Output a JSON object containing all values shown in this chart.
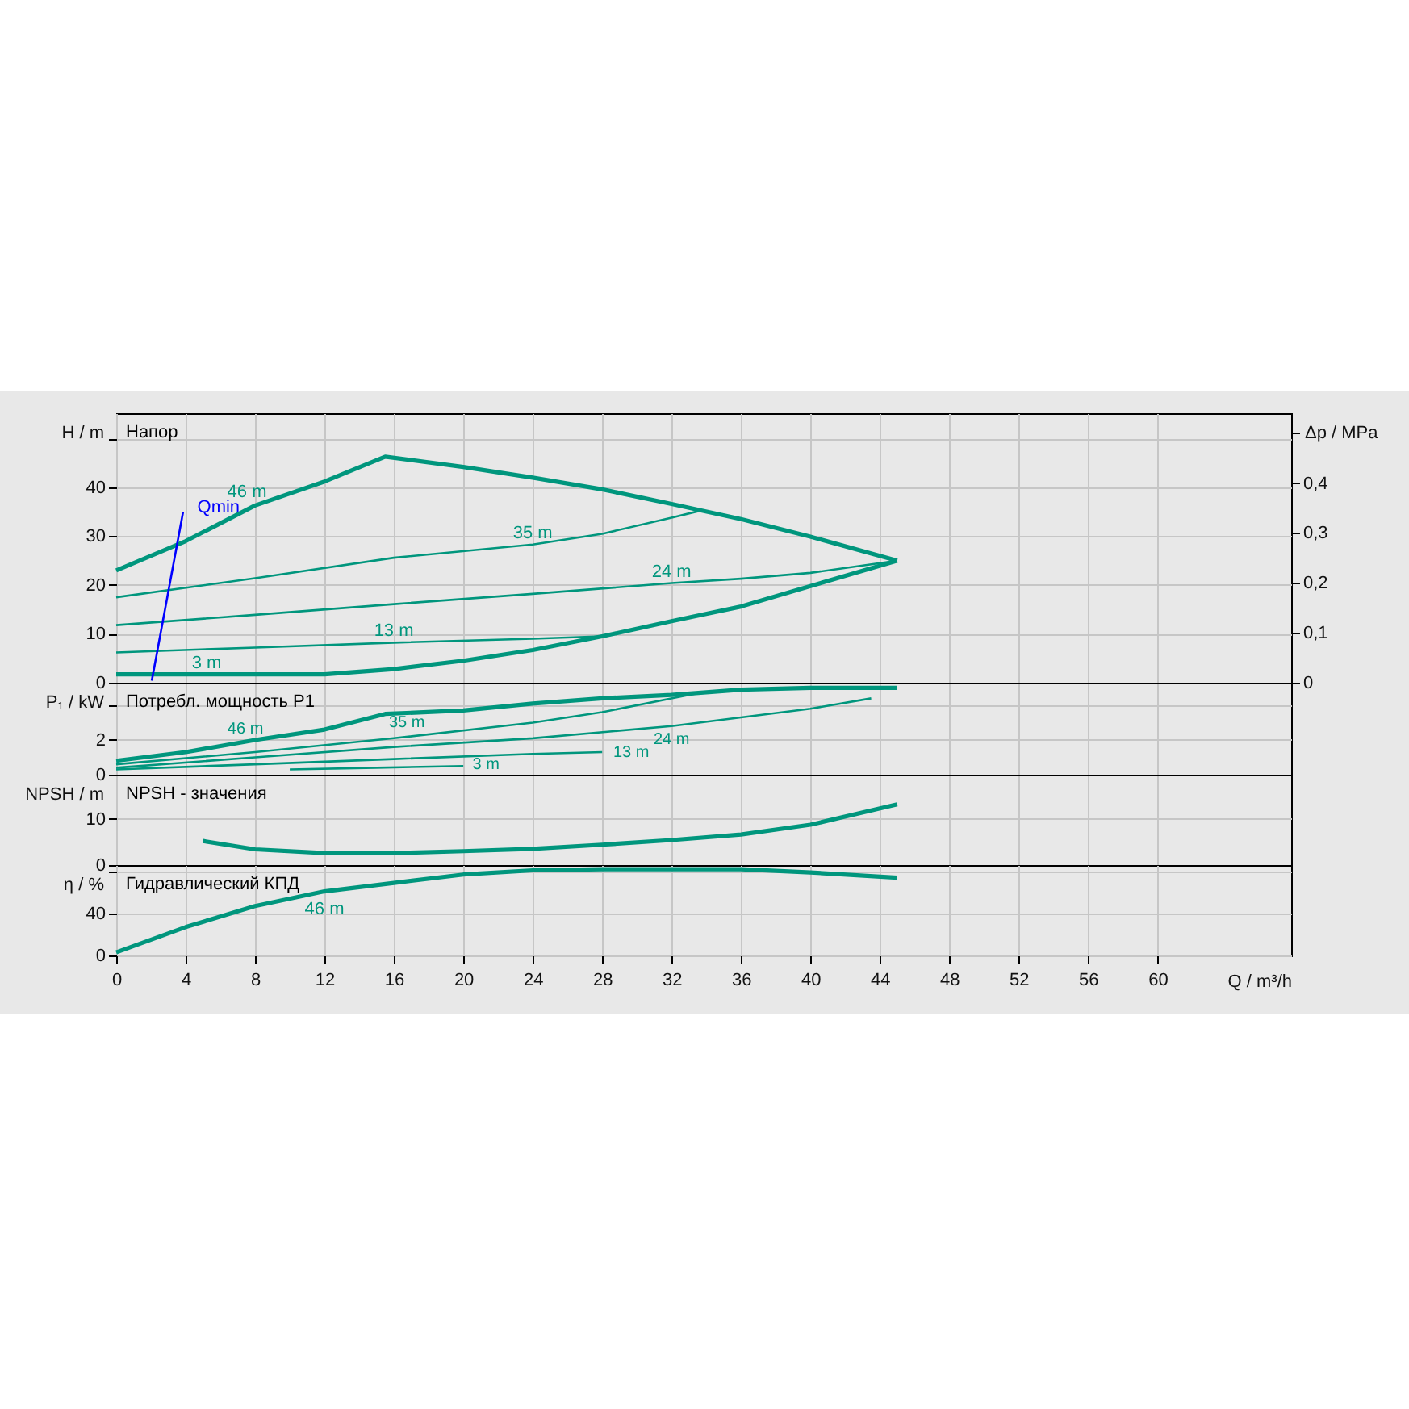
{
  "chart_data": [
    {
      "type": "line",
      "title": "Напор",
      "ylabel": "H / m",
      "y2label": "Δp / MPa",
      "xlim": [
        0,
        67.7
      ],
      "xticks": [
        0,
        4,
        8,
        12,
        16,
        20,
        24,
        28,
        32,
        36,
        40,
        44,
        48,
        52,
        56,
        60
      ],
      "ylim": [
        0,
        55.2
      ],
      "yticks": [
        0,
        10,
        20,
        30,
        40,
        {
          "value": 50,
          "label": null
        }
      ],
      "y2lim": [
        0,
        0.54
      ],
      "y2ticks": [
        0,
        {
          "value": 0.1,
          "label": "0,1"
        },
        {
          "value": 0.2,
          "label": "0,2"
        },
        {
          "value": 0.3,
          "label": "0,3"
        },
        {
          "value": 0.4,
          "label": "0,4"
        },
        {
          "value": 0.5,
          "label": null
        }
      ],
      "grid": true,
      "tick_labels": "y",
      "series": [
        {
          "name": "46 m",
          "color": "#00967d",
          "x": [
            0,
            4,
            8,
            12,
            15.5,
            20,
            24,
            28,
            32,
            36,
            40,
            45
          ],
          "values": [
            23,
            29,
            36.3,
            41.2,
            46.3,
            44.2,
            42,
            39.6,
            36.6,
            33.5,
            29.9,
            25
          ]
        },
        {
          "name": "35 m",
          "color": "#00967d",
          "x": [
            0,
            8,
            16,
            24,
            28,
            32,
            33.5
          ],
          "values": [
            17.5,
            21.4,
            25.6,
            28.3,
            30.5,
            33.8,
            35.1
          ]
        },
        {
          "name": "24 m",
          "color": "#00967d",
          "x": [
            0,
            8,
            16,
            24,
            32,
            36,
            40,
            45
          ],
          "values": [
            11.8,
            13.9,
            16.1,
            18.2,
            20.4,
            21.3,
            22.5,
            25
          ]
        },
        {
          "name": "13 m",
          "color": "#00967d",
          "x": [
            0,
            8,
            16,
            24,
            28
          ],
          "values": [
            6.2,
            7.2,
            8.2,
            9.0,
            9.5
          ]
        },
        {
          "name": "3 m",
          "color": "#00967d",
          "x": [
            0,
            4,
            8,
            12,
            16,
            20,
            24,
            28,
            32,
            36,
            40,
            45
          ],
          "values": [
            1.7,
            1.7,
            1.7,
            1.7,
            2.8,
            4.5,
            6.7,
            9.5,
            12.6,
            15.6,
            19.8,
            25
          ]
        },
        {
          "name": "Qmin",
          "color": "#0000ff",
          "x": [
            2.05,
            3.85
          ],
          "values": [
            0.4,
            34.9
          ]
        }
      ]
    },
    {
      "type": "line",
      "title": "Потребл. мощность P1",
      "ylabel": "P₁ / kW",
      "xlim": [
        0,
        67.7
      ],
      "xticks": [
        0,
        4,
        8,
        12,
        16,
        20,
        24,
        28,
        32,
        36,
        40,
        44,
        48,
        52,
        56,
        60
      ],
      "ylim": [
        0,
        5.3
      ],
      "yticks": [
        0,
        2,
        {
          "value": 4,
          "label": null
        }
      ],
      "grid": true,
      "tick_labels": "y",
      "series": [
        {
          "name": "46 m",
          "color": "#00967d",
          "x": [
            0,
            4,
            8,
            12,
            15.5,
            20,
            24,
            28,
            32,
            36,
            40,
            45
          ],
          "values": [
            0.8,
            1.3,
            2.0,
            2.6,
            3.5,
            3.7,
            4.1,
            4.4,
            4.6,
            4.9,
            5.0,
            5.0
          ]
        },
        {
          "name": "35 m",
          "color": "#00967d",
          "x": [
            0,
            8,
            16,
            24,
            28,
            33.5
          ],
          "values": [
            0.6,
            1.3,
            2.1,
            3.0,
            3.6,
            4.7
          ]
        },
        {
          "name": "24 m",
          "color": "#00967d",
          "x": [
            0,
            8,
            16,
            24,
            32,
            40,
            43.5
          ],
          "values": [
            0.4,
            1.0,
            1.6,
            2.1,
            2.8,
            3.8,
            4.4
          ]
        },
        {
          "name": "13 m",
          "color": "#00967d",
          "x": [
            0,
            8,
            16,
            24,
            28
          ],
          "values": [
            0.3,
            0.6,
            0.9,
            1.2,
            1.3
          ]
        },
        {
          "name": "3 m",
          "color": "#00967d",
          "x": [
            10,
            15,
            20
          ],
          "values": [
            0.3,
            0.4,
            0.5
          ]
        }
      ]
    },
    {
      "type": "line",
      "title": "NPSH - значения",
      "ylabel": "NPSH / m",
      "xlim": [
        0,
        67.7
      ],
      "xticks": [
        0,
        4,
        8,
        12,
        16,
        20,
        24,
        28,
        32,
        36,
        40,
        44,
        48,
        52,
        56,
        60
      ],
      "ylim": [
        0,
        19.5
      ],
      "yticks": [
        0,
        10
      ],
      "grid": true,
      "tick_labels": "y",
      "series": [
        {
          "color": "#00967d",
          "x": [
            5,
            8,
            12,
            16,
            20,
            24,
            28,
            32,
            36,
            40,
            45
          ],
          "values": [
            5.2,
            3.4,
            2.6,
            2.6,
            3.0,
            3.5,
            4.4,
            5.4,
            6.6,
            8.7,
            13.1
          ]
        }
      ]
    },
    {
      "type": "line",
      "title": "Гидравлический КПД",
      "ylabel": "η / %",
      "xlabel": "Q / m³/h",
      "xlim": [
        0,
        67.7
      ],
      "xticks": [
        0,
        4,
        8,
        12,
        16,
        20,
        24,
        28,
        32,
        36,
        40,
        44,
        48,
        52,
        56,
        60
      ],
      "ylim": [
        0,
        86
      ],
      "yticks": [
        0,
        40,
        {
          "value": 80,
          "label": null
        }
      ],
      "grid": true,
      "series": [
        {
          "name": "46 m",
          "color": "#00967d",
          "x": [
            0,
            4,
            8,
            12,
            16,
            20,
            24,
            28,
            32,
            36,
            40,
            45
          ],
          "values": [
            3,
            27,
            47,
            61,
            69,
            77,
            81,
            82,
            82,
            82,
            79,
            74
          ]
        }
      ]
    }
  ]
}
